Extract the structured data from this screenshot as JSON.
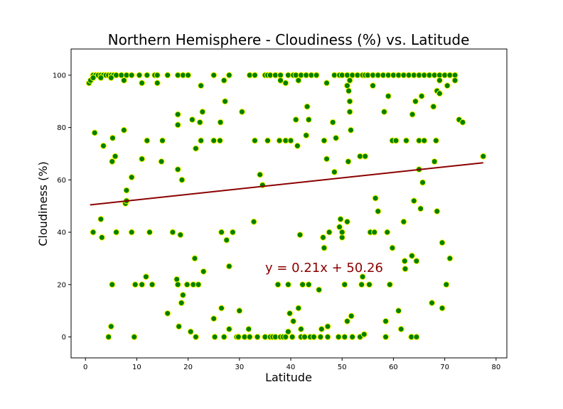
{
  "chart_data": {
    "type": "scatter",
    "title": "Northern Hemisphere - Cloudiness (%) vs. Latitude",
    "x_label": "Latitude",
    "y_label": "Cloudiness (%)",
    "annotation": "y = 0.21x + 50.26",
    "annotation_color": "#8b0000",
    "color": "green",
    "edgecolor": "yellow",
    "x": [
      1.5,
      2,
      2.5,
      3,
      3.5,
      4,
      4.5,
      5,
      5.5,
      6,
      7,
      8,
      9,
      10.5,
      12,
      13.5,
      14,
      16,
      18,
      19,
      20,
      25,
      28,
      32,
      33,
      35,
      35.5,
      36,
      37,
      38,
      39.5,
      40.5,
      41,
      42,
      43,
      44,
      45,
      48.5,
      49.5,
      50,
      51,
      52,
      53,
      54,
      54.5,
      55,
      56,
      57,
      58,
      59,
      60,
      61,
      62,
      63,
      64,
      65,
      66,
      67,
      68,
      69,
      70,
      71,
      72,
      0.7,
      1,
      1.5,
      3,
      5,
      7.5,
      11,
      14,
      22.5,
      27,
      38,
      39,
      41.5,
      47,
      51,
      51.5,
      56,
      69,
      70.5,
      72,
      51.3,
      1.5,
      1.8,
      3.5,
      3,
      3.2,
      4.5,
      5,
      5.2,
      5.2,
      5.3,
      5.8,
      6,
      7.5,
      7.8,
      8,
      8,
      9,
      9,
      9.5,
      9.7,
      11,
      11,
      12,
      11.8,
      12.5,
      13,
      14.8,
      15,
      16,
      17,
      17.8,
      18,
      18,
      18,
      18,
      18.2,
      18.5,
      18.7,
      18.8,
      19,
      19.8,
      20.5,
      20.8,
      21,
      21.3,
      21.5,
      21.5,
      22,
      22.3,
      22.5,
      22.8,
      23,
      25,
      25.2,
      25,
      26.3,
      26.2,
      26.5,
      26.5,
      27.2,
      27.5,
      27,
      28,
      28,
      28.7,
      29.5,
      29.8,
      30,
      30.5,
      31,
      32,
      31.8,
      32.8,
      33,
      33.5,
      34,
      34.5,
      35,
      35.5,
      36,
      36.5,
      37,
      37.5,
      37.8,
      38,
      38.5,
      39,
      39,
      39.5,
      39.5,
      39.8,
      40,
      40.3,
      40.5,
      41,
      41.3,
      41.5,
      41.8,
      42,
      42,
      42.3,
      42.7,
      43,
      43.2,
      43.5,
      43.5,
      43.8,
      44.5,
      45.5,
      45.8,
      46,
      46.5,
      46.3,
      46.5,
      47,
      47.2,
      47.2,
      47.5,
      48.2,
      48.5,
      48.8,
      49.3,
      49.5,
      49.7,
      50,
      50,
      50.5,
      50.5,
      51,
      51,
      51.2,
      51.5,
      51.5,
      51.7,
      51.8,
      52,
      53.5,
      53.5,
      53.8,
      54,
      54.3,
      54.5,
      55.3,
      55.5,
      56.3,
      56.5,
      57,
      58.2,
      58.5,
      58.5,
      58.8,
      59,
      59.3,
      59.8,
      59.8,
      60.5,
      61,
      61.5,
      62,
      62.2,
      62.3,
      62.5,
      63.5,
      63.6,
      63.7,
      64,
      64.3,
      64.5,
      64.5,
      65,
      65,
      65.3,
      65.5,
      65.7,
      66,
      67.5,
      67.8,
      68,
      68.3,
      68.5,
      68.5,
      69,
      69.5,
      69.5,
      70.3,
      71,
      72.8,
      73.5,
      77.5
    ],
    "values": [
      100,
      100,
      100,
      100,
      100,
      100,
      100,
      100,
      100,
      100,
      100,
      100,
      100,
      100,
      100,
      100,
      100,
      100,
      100,
      100,
      100,
      100,
      100,
      100,
      100,
      100,
      100,
      100,
      100,
      100,
      100,
      100,
      100,
      100,
      100,
      100,
      100,
      100,
      100,
      100,
      100,
      100,
      100,
      100,
      100,
      100,
      100,
      100,
      100,
      100,
      100,
      100,
      100,
      100,
      100,
      100,
      100,
      100,
      100,
      100,
      100,
      100,
      100,
      97,
      98,
      99,
      99,
      99,
      98,
      97,
      97,
      96,
      98,
      98,
      97,
      98,
      97,
      96,
      98,
      96,
      98,
      96,
      98,
      94,
      40,
      78,
      73,
      45,
      38,
      0,
      4,
      20,
      67,
      76,
      69,
      40,
      79,
      51,
      52,
      56,
      61,
      40,
      0,
      20,
      68,
      20,
      75,
      23,
      40,
      20,
      67,
      75,
      9,
      40,
      22,
      20,
      85,
      81,
      64,
      4,
      39,
      13,
      60,
      16,
      20,
      2,
      83,
      20,
      30,
      0,
      72,
      20,
      82,
      75,
      86,
      25,
      7,
      0,
      75,
      82,
      75,
      40,
      11,
      90,
      37,
      0,
      27,
      3,
      40,
      0,
      0,
      10,
      86,
      0,
      0,
      3,
      44,
      75,
      0,
      62,
      58,
      0,
      75,
      0,
      0,
      0,
      20,
      75,
      0,
      0,
      0,
      75,
      20,
      2,
      9,
      75,
      0,
      6,
      83,
      73,
      11,
      39,
      3,
      0,
      20,
      0,
      77,
      88,
      83,
      20,
      0,
      0,
      18,
      0,
      3,
      34,
      38,
      75,
      68,
      0,
      4,
      40,
      82,
      63,
      76,
      0,
      42,
      45,
      38,
      40,
      20,
      0,
      44,
      6,
      67,
      90,
      86,
      79,
      8,
      0,
      69,
      0,
      20,
      23,
      1,
      69,
      20,
      40,
      40,
      53,
      48,
      86,
      0,
      6,
      40,
      92,
      20,
      75,
      34,
      75,
      10,
      3,
      44,
      29,
      26,
      75,
      0,
      31,
      85,
      52,
      90,
      0,
      29,
      75,
      64,
      49,
      92,
      59,
      75,
      13,
      88,
      67,
      75,
      48,
      94,
      93,
      36,
      11,
      20,
      30,
      83,
      82,
      69
    ],
    "trendline": {
      "x": [
        0.9,
        77.5
      ],
      "values": [
        50.45,
        66.54
      ],
      "color": "#8b0000"
    },
    "xlim": [
      -2.8,
      82.1
    ],
    "ylim": [
      -8,
      110
    ],
    "xticks": [
      0,
      10,
      20,
      30,
      40,
      50,
      60,
      70,
      80
    ],
    "yticks": [
      0,
      20,
      40,
      60,
      80,
      100
    ]
  }
}
